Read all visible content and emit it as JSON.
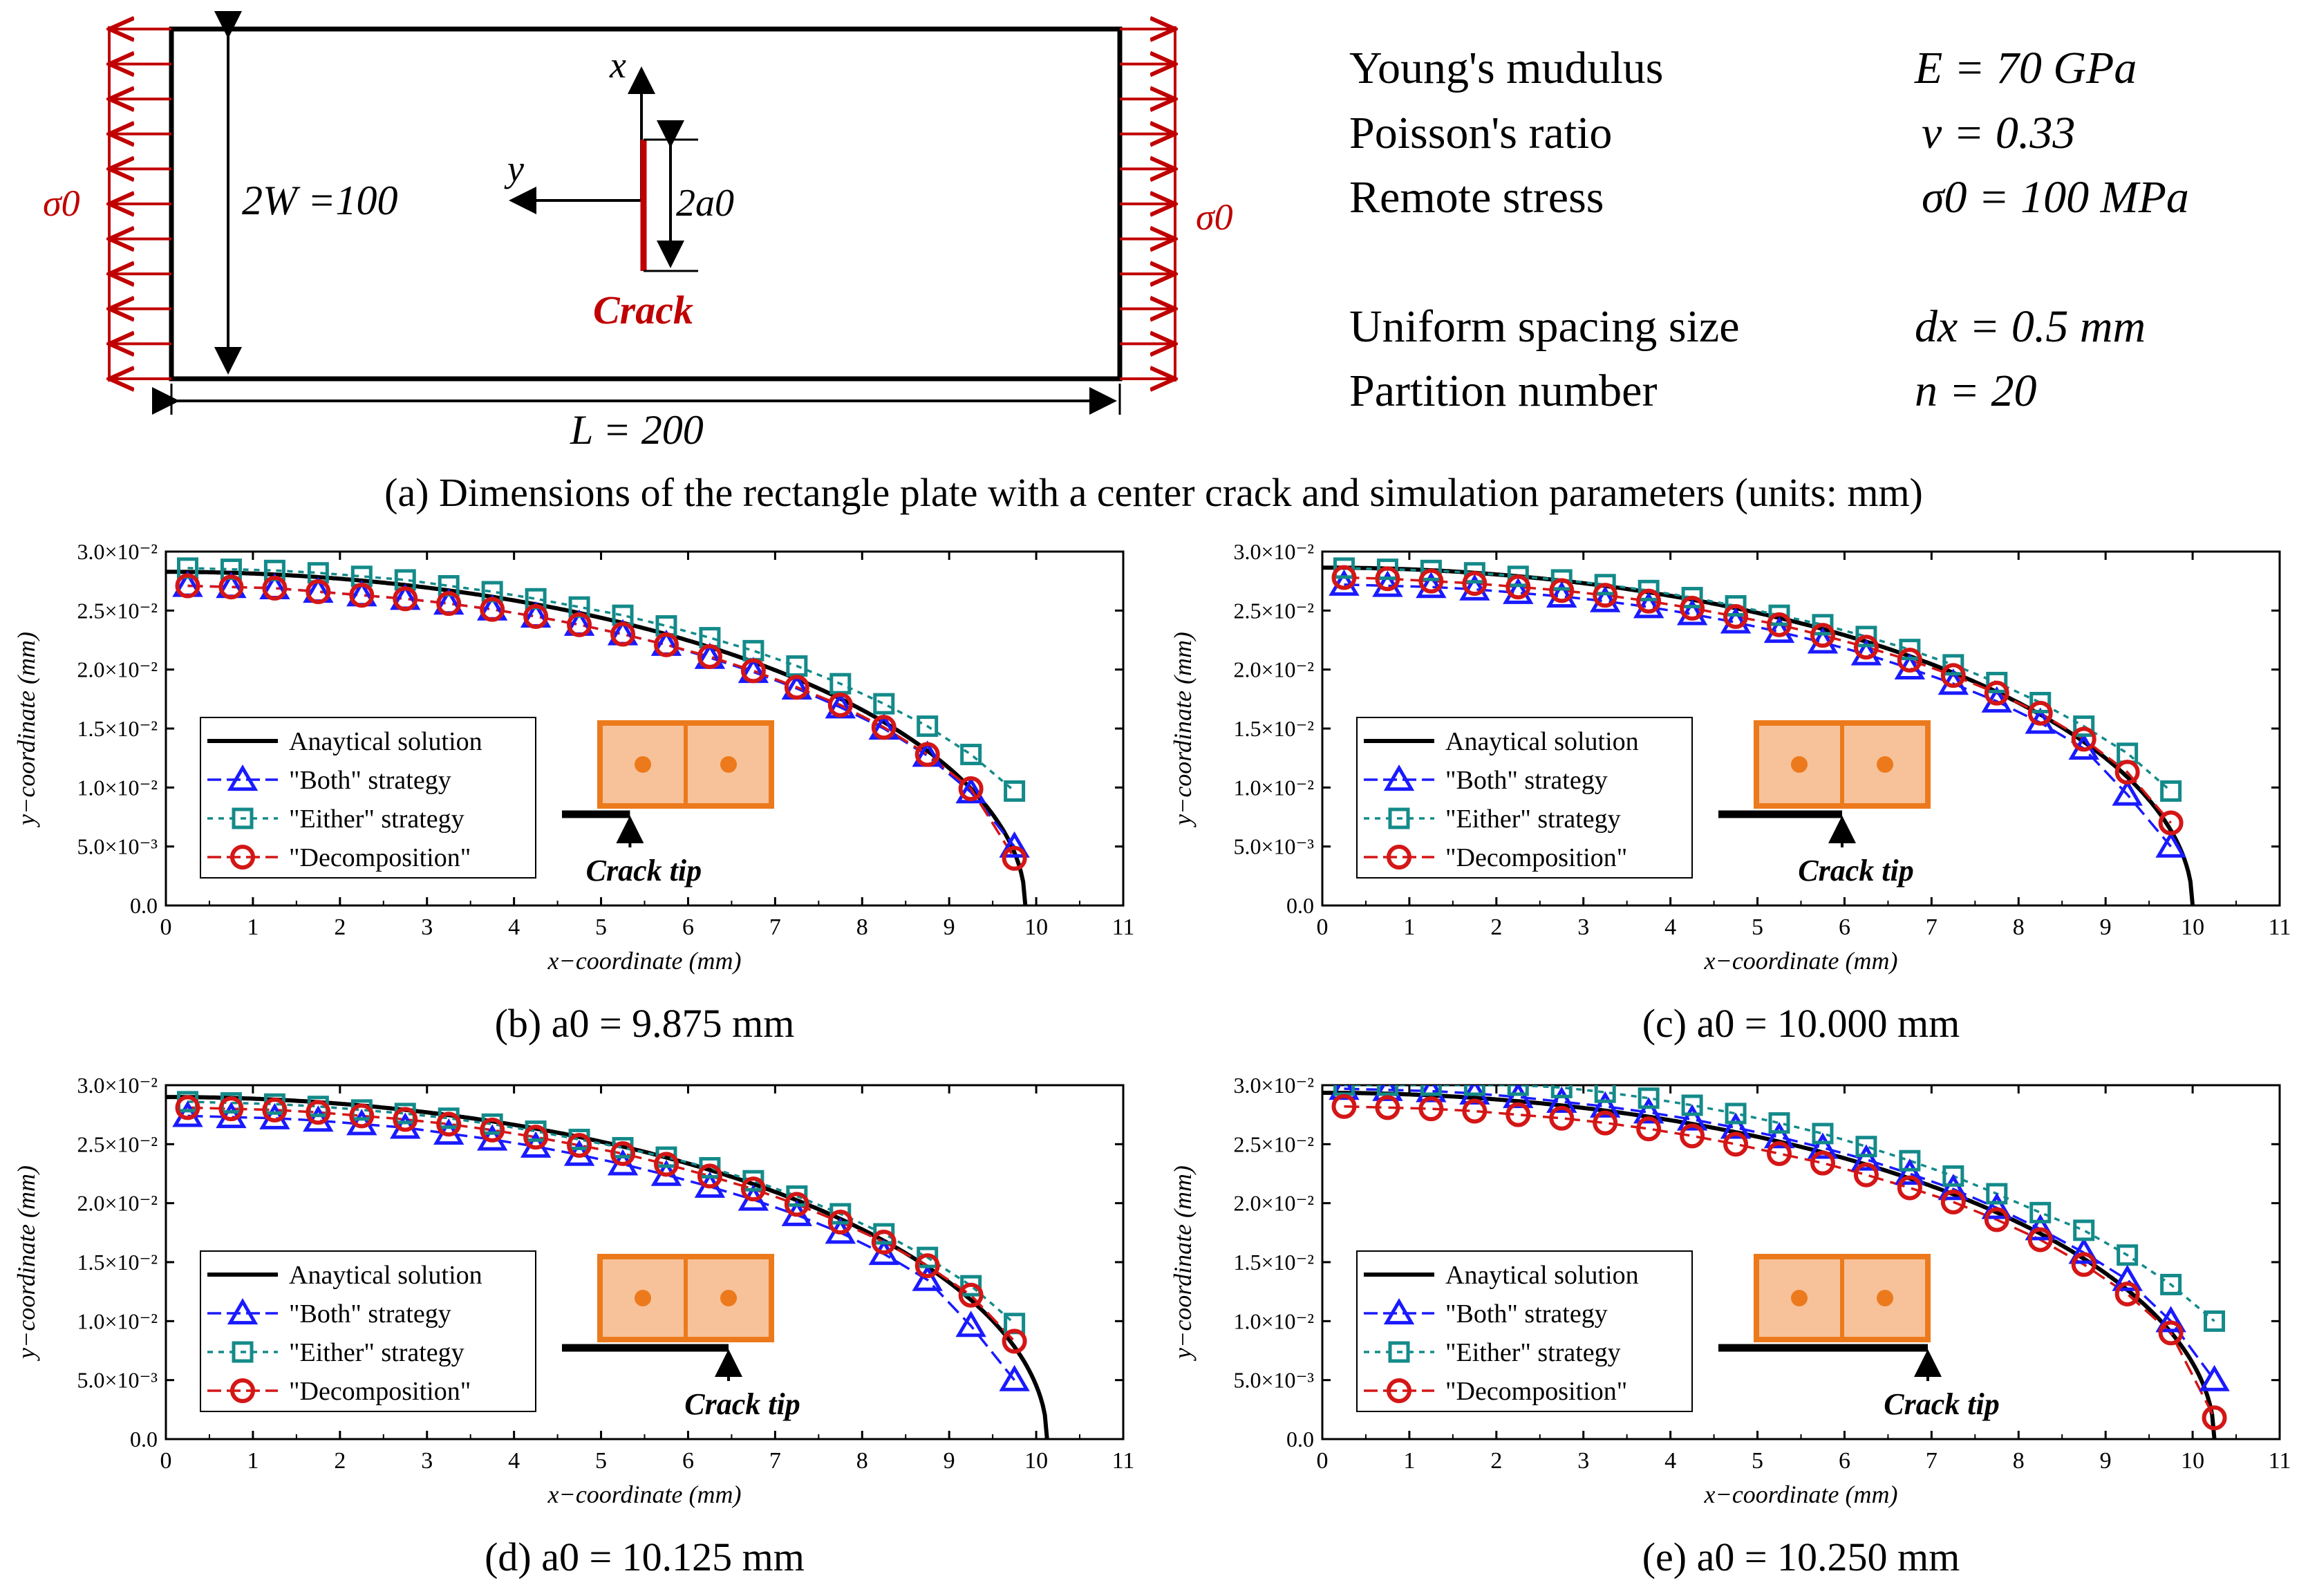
{
  "plate": {
    "width_label": "2W =100",
    "length_label": "L = 200",
    "crack_length_label": "2a0",
    "crack_label": "Crack",
    "stress_label": "σ0",
    "x_axis_label": "x",
    "y_axis_label": "y"
  },
  "parameters": [
    {
      "name": "Young's mudulus",
      "value": "E = 70 GPa"
    },
    {
      "name": "Poisson's ratio",
      "value": "ν = 0.33"
    },
    {
      "name": "Remote stress",
      "value": "σ0 = 100 MPa"
    },
    {
      "name": "Uniform spacing size",
      "value": "dx = 0.5 mm"
    },
    {
      "name": "Partition number",
      "value": "n = 20"
    }
  ],
  "caption_a": "(a) Dimensions of the rectangle plate with a center crack and simulation parameters (units: mm)",
  "legend": {
    "analytical": "Anaytical solution",
    "both": "\"Both\" strategy",
    "either": "\"Either\" strategy",
    "decomp": "\"Decomposition\""
  },
  "inset_label": "Crack tip",
  "colors": {
    "analytical": "#000000",
    "both": "#1a1aff",
    "either": "#148a8a",
    "decomp": "#d41616",
    "cell_fill": "#f7c29a",
    "cell_stroke": "#ec7a1c",
    "cell_dot": "#ec7a1c",
    "plate_arrows": "#c00000"
  },
  "chart_data": [
    {
      "type": "line",
      "caption": "(b) a0 = 9.875 mm",
      "a0": 9.875,
      "xlabel": "x−coordinate (mm)",
      "ylabel": "y−coordinate (mm)",
      "xlim": [
        0,
        11
      ],
      "ylim": [
        0,
        0.03
      ],
      "xticks": [
        "0",
        "1",
        "2",
        "3",
        "4",
        "5",
        "6",
        "7",
        "8",
        "9",
        "10",
        "11"
      ],
      "yticks": [
        "0.0",
        "5.0×10⁻³",
        "1.0×10⁻²",
        "1.5×10⁻²",
        "2.0×10⁻²",
        "2.5×10⁻²",
        "3.0×10⁻²"
      ],
      "x": [
        0.25,
        0.75,
        1.25,
        1.75,
        2.25,
        2.75,
        3.25,
        3.75,
        4.25,
        4.75,
        5.25,
        5.75,
        6.25,
        6.75,
        7.25,
        7.75,
        8.25,
        8.75,
        9.25,
        9.75
      ],
      "series": [
        {
          "name": "\"Both\" strategy",
          "values": [
            0.0271,
            0.027,
            0.0269,
            0.0266,
            0.0263,
            0.026,
            0.0256,
            0.0251,
            0.0245,
            0.0238,
            0.023,
            0.0221,
            0.021,
            0.0198,
            0.0184,
            0.0168,
            0.015,
            0.0127,
            0.0096,
            0.005
          ]
        },
        {
          "name": "\"Either\" strategy",
          "values": [
            0.0286,
            0.0285,
            0.0284,
            0.0282,
            0.0279,
            0.0276,
            0.0271,
            0.0266,
            0.026,
            0.0253,
            0.0246,
            0.0237,
            0.0227,
            0.0216,
            0.0203,
            0.0188,
            0.0171,
            0.0152,
            0.0128,
            0.0097
          ]
        },
        {
          "name": "\"Decomposition\"",
          "values": [
            0.0271,
            0.027,
            0.0269,
            0.0266,
            0.0263,
            0.026,
            0.0256,
            0.0251,
            0.0245,
            0.0238,
            0.023,
            0.0221,
            0.0211,
            0.0199,
            0.0185,
            0.017,
            0.0151,
            0.0128,
            0.0099,
            0.004
          ]
        }
      ]
    },
    {
      "type": "line",
      "caption": "(c) a0 = 10.000 mm",
      "a0": 10.0,
      "xlabel": "x−coordinate (mm)",
      "ylabel": "y−coordinate (mm)",
      "xlim": [
        0,
        11
      ],
      "ylim": [
        0,
        0.03
      ],
      "xticks": [
        "0",
        "1",
        "2",
        "3",
        "4",
        "5",
        "6",
        "7",
        "8",
        "9",
        "10",
        "11"
      ],
      "yticks": [
        "0.0",
        "5.0×10⁻³",
        "1.0×10⁻²",
        "1.5×10⁻²",
        "2.0×10⁻²",
        "2.5×10⁻²",
        "3.0×10⁻²"
      ],
      "x": [
        0.25,
        0.75,
        1.25,
        1.75,
        2.25,
        2.75,
        3.25,
        3.75,
        4.25,
        4.75,
        5.25,
        5.75,
        6.25,
        6.75,
        7.25,
        7.75,
        8.25,
        8.75,
        9.25,
        9.75
      ],
      "series": [
        {
          "name": "\"Both\" strategy",
          "values": [
            0.0272,
            0.0271,
            0.027,
            0.0268,
            0.0265,
            0.0262,
            0.0258,
            0.0253,
            0.0247,
            0.024,
            0.0232,
            0.0223,
            0.0213,
            0.0201,
            0.0188,
            0.0173,
            0.0155,
            0.0133,
            0.0094,
            0.005
          ]
        },
        {
          "name": "\"Either\" strategy",
          "values": [
            0.0286,
            0.0285,
            0.0284,
            0.0282,
            0.0279,
            0.0276,
            0.0272,
            0.0267,
            0.0261,
            0.0254,
            0.0246,
            0.0238,
            0.0228,
            0.0217,
            0.0204,
            0.0189,
            0.0172,
            0.0152,
            0.0129,
            0.0097
          ]
        },
        {
          "name": "\"Decomposition\"",
          "values": [
            0.0278,
            0.0277,
            0.0275,
            0.0273,
            0.027,
            0.0267,
            0.0263,
            0.0258,
            0.0252,
            0.0245,
            0.0238,
            0.0229,
            0.0219,
            0.0208,
            0.0195,
            0.018,
            0.0163,
            0.0141,
            0.0113,
            0.007
          ]
        }
      ]
    },
    {
      "type": "line",
      "caption": "(d) a0 = 10.125 mm",
      "a0": 10.125,
      "xlabel": "x−coordinate (mm)",
      "ylabel": "y−coordinate (mm)",
      "xlim": [
        0,
        11
      ],
      "ylim": [
        0,
        0.03
      ],
      "xticks": [
        "0",
        "1",
        "2",
        "3",
        "4",
        "5",
        "6",
        "7",
        "8",
        "9",
        "10",
        "11"
      ],
      "yticks": [
        "0.0",
        "5.0×10⁻³",
        "1.0×10⁻²",
        "1.5×10⁻²",
        "2.0×10⁻²",
        "2.5×10⁻²",
        "3.0×10⁻²"
      ],
      "x": [
        0.25,
        0.75,
        1.25,
        1.75,
        2.25,
        2.75,
        3.25,
        3.75,
        4.25,
        4.75,
        5.25,
        5.75,
        6.25,
        6.75,
        7.25,
        7.75,
        8.25,
        8.75,
        9.25,
        9.75
      ],
      "series": [
        {
          "name": "\"Both\" strategy",
          "values": [
            0.0274,
            0.0273,
            0.0272,
            0.027,
            0.0267,
            0.0264,
            0.0259,
            0.0254,
            0.0248,
            0.0241,
            0.0233,
            0.0224,
            0.0214,
            0.0203,
            0.019,
            0.0175,
            0.0157,
            0.0135,
            0.0096,
            0.005
          ]
        },
        {
          "name": "\"Either\" strategy",
          "values": [
            0.0286,
            0.0285,
            0.0284,
            0.0282,
            0.0279,
            0.0276,
            0.0272,
            0.0267,
            0.0261,
            0.0254,
            0.0247,
            0.0239,
            0.023,
            0.0219,
            0.0206,
            0.0191,
            0.0174,
            0.0154,
            0.013,
            0.0098
          ]
        },
        {
          "name": "\"Decomposition\"",
          "values": [
            0.0281,
            0.028,
            0.0279,
            0.0277,
            0.0274,
            0.0271,
            0.0267,
            0.0262,
            0.0256,
            0.0249,
            0.0242,
            0.0233,
            0.0223,
            0.0212,
            0.0199,
            0.0184,
            0.0167,
            0.0147,
            0.0122,
            0.0083
          ]
        }
      ]
    },
    {
      "type": "line",
      "caption": "(e) a0 = 10.250 mm",
      "a0": 10.25,
      "xlabel": "x−coordinate (mm)",
      "ylabel": "y−coordinate (mm)",
      "xlim": [
        0,
        11
      ],
      "ylim": [
        0,
        0.03
      ],
      "xticks": [
        "0",
        "1",
        "2",
        "3",
        "4",
        "5",
        "6",
        "7",
        "8",
        "9",
        "10",
        "11"
      ],
      "yticks": [
        "0.0",
        "5.0×10⁻³",
        "1.0×10⁻²",
        "1.5×10⁻²",
        "2.0×10⁻²",
        "2.5×10⁻²",
        "3.0×10⁻²"
      ],
      "x": [
        0.25,
        0.75,
        1.25,
        1.75,
        2.25,
        2.75,
        3.25,
        3.75,
        4.25,
        4.75,
        5.25,
        5.75,
        6.25,
        6.75,
        7.25,
        7.75,
        8.25,
        8.75,
        9.25,
        9.75,
        10.25
      ],
      "series": [
        {
          "name": "\"Both\" strategy",
          "values": [
            0.0297,
            0.0296,
            0.0295,
            0.0293,
            0.029,
            0.0286,
            0.0282,
            0.0277,
            0.0271,
            0.0264,
            0.0256,
            0.0247,
            0.0237,
            0.0225,
            0.0212,
            0.0196,
            0.0178,
            0.0158,
            0.0135,
            0.01,
            0.005
          ]
        },
        {
          "name": "\"Either\" strategy",
          "values": [
            0.03,
            0.03,
            0.03,
            0.03,
            0.03,
            0.0298,
            0.0294,
            0.0289,
            0.0283,
            0.0276,
            0.0268,
            0.0259,
            0.0248,
            0.0236,
            0.0223,
            0.0208,
            0.0192,
            0.0177,
            0.0156,
            0.0131,
            0.01
          ]
        },
        {
          "name": "\"Decomposition\"",
          "values": [
            0.0282,
            0.0281,
            0.028,
            0.0278,
            0.0275,
            0.0272,
            0.0268,
            0.0263,
            0.0257,
            0.025,
            0.0242,
            0.0234,
            0.0224,
            0.0213,
            0.0201,
            0.0186,
            0.0169,
            0.0148,
            0.0123,
            0.009,
            0.0018
          ]
        }
      ]
    }
  ]
}
